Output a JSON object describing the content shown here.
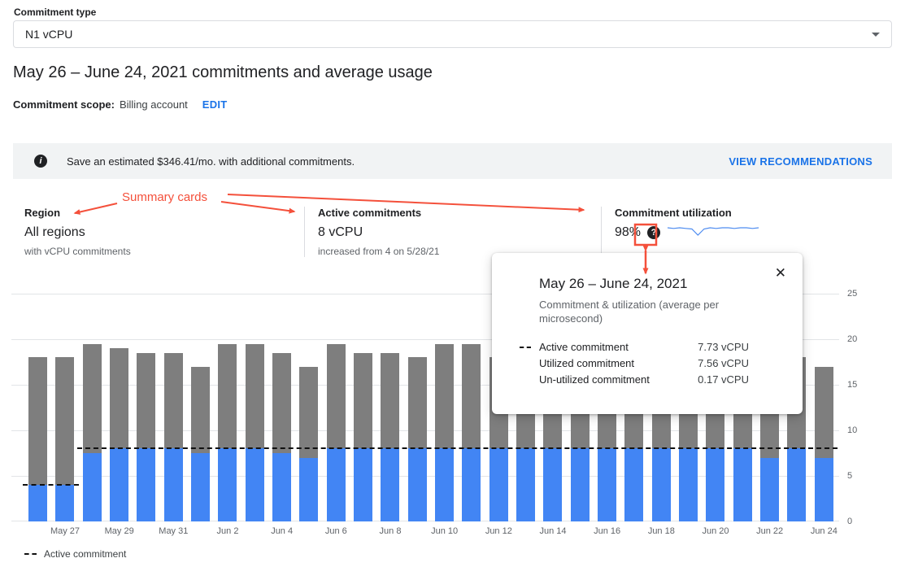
{
  "colors": {
    "link_blue": "#1a73e8",
    "bar_gray": "#7e7e7e",
    "bar_blue": "#4285f4",
    "annotation_red": "#f4503b",
    "banner_bg": "#f1f3f4"
  },
  "icons": {
    "info": "i",
    "help": "?",
    "close": "✕"
  },
  "commitment_type_field": {
    "label": "Commitment type",
    "value": "N1 vCPU"
  },
  "page_title": "May 26 – June 24, 2021 commitments and average usage",
  "scope": {
    "label": "Commitment scope:",
    "value": "Billing account",
    "edit_label": "EDIT"
  },
  "banner": {
    "message": "Save an estimated $346.41/mo. with additional commitments.",
    "action_label": "VIEW RECOMMENDATIONS"
  },
  "annotation": {
    "label": "Summary cards"
  },
  "summary_cards": [
    {
      "title": "Region",
      "value": "All regions",
      "subtitle": "with vCPU commitments"
    },
    {
      "title": "Active commitments",
      "value": "8 vCPU",
      "subtitle": "increased from 4 on 5/28/21"
    },
    {
      "title": "Commitment utilization",
      "value": "98%"
    }
  ],
  "sparkline": {
    "values": [
      98,
      97,
      98,
      97,
      96,
      86,
      96,
      98,
      97,
      98,
      98,
      97,
      98,
      98,
      97,
      98
    ]
  },
  "tooltip": {
    "title": "May 26 – June 24, 2021",
    "subtitle": "Commitment & utilization (average per microsecond)",
    "rows": [
      {
        "label": "Active commitment",
        "value": "7.73 vCPU"
      },
      {
        "label": "Utilized commitment",
        "value": "7.56 vCPU"
      },
      {
        "label": "Un-utilized commitment",
        "value": "0.17 vCPU"
      }
    ]
  },
  "legend": {
    "active_commitment": "Active commitment"
  },
  "chart_data": {
    "type": "bar",
    "title": "May 26 – June 24, 2021 commitments and average usage",
    "ylim": [
      0,
      25
    ],
    "yticks": [
      0,
      5,
      10,
      15,
      20,
      25
    ],
    "grid": true,
    "legend_position": "bottom-left",
    "days": [
      "May 26",
      "May 27",
      "May 28",
      "May 29",
      "May 30",
      "May 31",
      "Jun 1",
      "Jun 2",
      "Jun 3",
      "Jun 4",
      "Jun 5",
      "Jun 6",
      "Jun 7",
      "Jun 8",
      "Jun 9",
      "Jun 10",
      "Jun 11",
      "Jun 12",
      "Jun 13",
      "Jun 14",
      "Jun 15",
      "Jun 16",
      "Jun 17",
      "Jun 18",
      "Jun 19",
      "Jun 20",
      "Jun 21",
      "Jun 22",
      "Jun 23",
      "Jun 24"
    ],
    "x_tick_labels": [
      "May 27",
      "May 29",
      "May 31",
      "Jun 2",
      "Jun 4",
      "Jun 6",
      "Jun 8",
      "Jun 10",
      "Jun 12",
      "Jun 14",
      "Jun 16",
      "Jun 18",
      "Jun 20",
      "Jun 22",
      "Jun 24"
    ],
    "series": [
      {
        "name": "Total usage",
        "render": "bar",
        "color": "#7e7e7e",
        "values": [
          18,
          18,
          19.5,
          19,
          18.5,
          18.5,
          17,
          19.5,
          19.5,
          18.5,
          17,
          19.5,
          18.5,
          18.5,
          18,
          19.5,
          19.5,
          18,
          18,
          18,
          18,
          18,
          18.5,
          18.5,
          19,
          19,
          18.5,
          16.5,
          18,
          17
        ]
      },
      {
        "name": "Utilized commitment",
        "render": "bar",
        "color": "#4285f4",
        "values": [
          4,
          4,
          7.5,
          8,
          8,
          8,
          7.5,
          8,
          8,
          7.5,
          7,
          8,
          8,
          8,
          8,
          8,
          8,
          8,
          8,
          8,
          8,
          8,
          8,
          8,
          8,
          8,
          8,
          7,
          8,
          7
        ]
      },
      {
        "name": "Active commitment",
        "render": "dashed-line",
        "color": "#111111",
        "values": [
          4,
          4,
          8,
          8,
          8,
          8,
          8,
          8,
          8,
          8,
          8,
          8,
          8,
          8,
          8,
          8,
          8,
          8,
          8,
          8,
          8,
          8,
          8,
          8,
          8,
          8,
          8,
          8,
          8,
          8
        ]
      }
    ]
  }
}
